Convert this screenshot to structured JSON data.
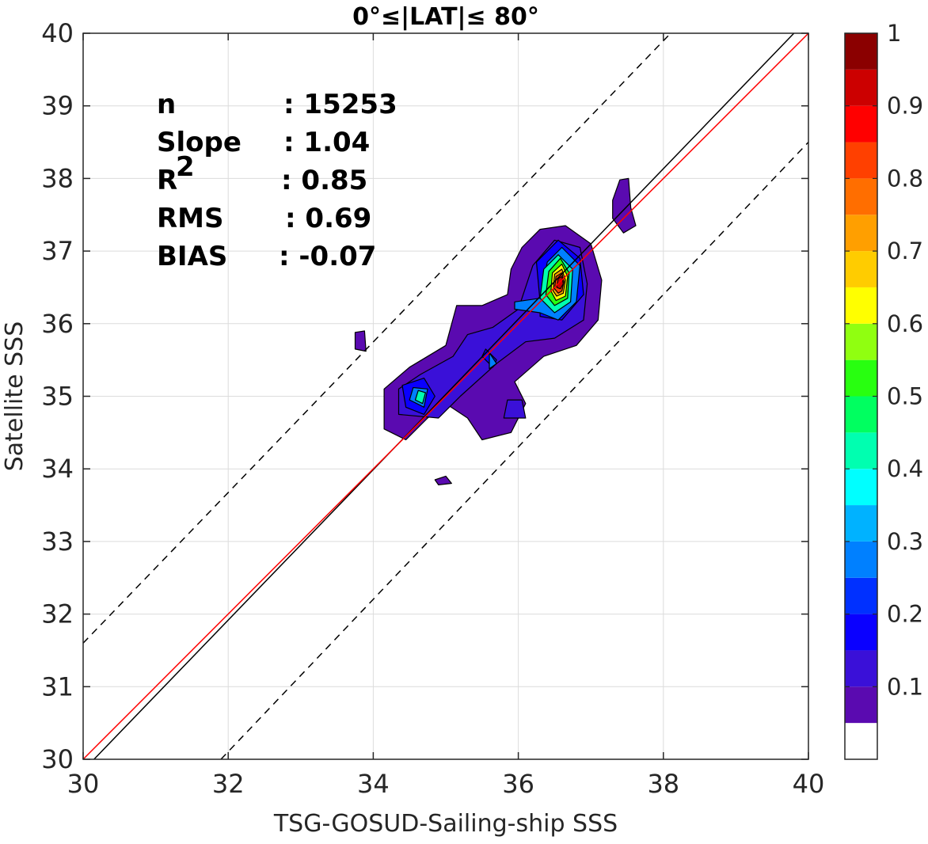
{
  "chart_data": {
    "type": "heatmap",
    "title": "0°≤|LAT|≤ 80°",
    "xlabel": "TSG-GOSUD-Sailing-ship SSS",
    "ylabel": "Satellite SSS",
    "xlim": [
      30,
      40
    ],
    "ylim": [
      30,
      40
    ],
    "xticks": [
      "30",
      "32",
      "34",
      "36",
      "38",
      "40"
    ],
    "yticks": [
      "30",
      "31",
      "32",
      "33",
      "34",
      "35",
      "36",
      "37",
      "38",
      "39",
      "40"
    ],
    "grid": true,
    "stats": [
      {
        "name": "n",
        "value": ": 15253"
      },
      {
        "name": "Slope",
        "value": ": 1.04"
      },
      {
        "name": "R",
        "sup": "2",
        "value": ": 0.85"
      },
      {
        "name": "RMS",
        "value": ": 0.69"
      },
      {
        "name": "BIAS",
        "value": ": -0.07"
      }
    ],
    "lines": [
      {
        "style": "solid",
        "color": "#000000",
        "points": [
          [
            30.15,
            30
          ],
          [
            39.8,
            40
          ]
        ]
      },
      {
        "style": "solid",
        "color": "#ff0000",
        "points": [
          [
            30,
            30
          ],
          [
            40,
            40
          ]
        ]
      },
      {
        "style": "dashed",
        "color": "#000000",
        "points": [
          [
            30,
            31.6
          ],
          [
            38.1,
            40
          ]
        ]
      },
      {
        "style": "dashed",
        "color": "#000000",
        "points": [
          [
            31.9,
            30
          ],
          [
            40,
            38.5
          ]
        ]
      }
    ],
    "density_peak": {
      "x": 36.55,
      "y": 36.55,
      "value": 1.0
    },
    "colorbar": {
      "range": [
        0,
        1
      ],
      "ticks": [
        "0.1",
        "0.2",
        "0.3",
        "0.4",
        "0.5",
        "0.6",
        "0.7",
        "0.8",
        "0.9",
        "1"
      ],
      "levels": [
        {
          "from": 0.0,
          "to": 0.05,
          "color": "#ffffff"
        },
        {
          "from": 0.05,
          "to": 0.1,
          "color": "#5a0ab0"
        },
        {
          "from": 0.1,
          "to": 0.15,
          "color": "#3a10d8"
        },
        {
          "from": 0.15,
          "to": 0.2,
          "color": "#0a00ff"
        },
        {
          "from": 0.2,
          "to": 0.25,
          "color": "#0030ff"
        },
        {
          "from": 0.25,
          "to": 0.3,
          "color": "#0080ff"
        },
        {
          "from": 0.3,
          "to": 0.35,
          "color": "#00b2ff"
        },
        {
          "from": 0.35,
          "to": 0.4,
          "color": "#00ffff"
        },
        {
          "from": 0.4,
          "to": 0.45,
          "color": "#00ffb0"
        },
        {
          "from": 0.45,
          "to": 0.5,
          "color": "#00ff60"
        },
        {
          "from": 0.5,
          "to": 0.55,
          "color": "#28ff10"
        },
        {
          "from": 0.55,
          "to": 0.6,
          "color": "#90ff10"
        },
        {
          "from": 0.6,
          "to": 0.65,
          "color": "#ffff00"
        },
        {
          "from": 0.65,
          "to": 0.7,
          "color": "#ffcc00"
        },
        {
          "from": 0.7,
          "to": 0.75,
          "color": "#ff9f00"
        },
        {
          "from": 0.75,
          "to": 0.8,
          "color": "#ff6e00"
        },
        {
          "from": 0.8,
          "to": 0.85,
          "color": "#ff4000"
        },
        {
          "from": 0.85,
          "to": 0.9,
          "color": "#ff0000"
        },
        {
          "from": 0.9,
          "to": 0.95,
          "color": "#cc0000"
        },
        {
          "from": 0.95,
          "to": 1.0,
          "color": "#8b0000"
        }
      ]
    },
    "contours": [
      {
        "level": 0.1,
        "points": [
          [
            34.45,
            34.4
          ],
          [
            34.15,
            34.55
          ],
          [
            34.15,
            35.1
          ],
          [
            34.5,
            35.4
          ],
          [
            35.0,
            35.7
          ],
          [
            35.15,
            36.25
          ],
          [
            35.5,
            36.25
          ],
          [
            35.85,
            36.4
          ],
          [
            35.9,
            36.75
          ],
          [
            36.05,
            37.05
          ],
          [
            36.3,
            37.3
          ],
          [
            36.65,
            37.35
          ],
          [
            37.0,
            37.1
          ],
          [
            37.15,
            36.6
          ],
          [
            37.1,
            36.05
          ],
          [
            36.8,
            35.7
          ],
          [
            36.35,
            35.55
          ],
          [
            35.95,
            35.2
          ],
          [
            36.1,
            34.9
          ],
          [
            35.9,
            34.5
          ],
          [
            35.5,
            34.4
          ],
          [
            35.3,
            34.7
          ],
          [
            35.0,
            34.9
          ],
          [
            34.75,
            34.7
          ]
        ]
      },
      {
        "level": 0.1,
        "points": [
          [
            37.3,
            37.7
          ],
          [
            37.4,
            37.98
          ],
          [
            37.52,
            38.0
          ],
          [
            37.55,
            37.6
          ],
          [
            37.62,
            37.35
          ],
          [
            37.45,
            37.25
          ],
          [
            37.3,
            37.45
          ]
        ]
      },
      {
        "level": 0.1,
        "points": [
          [
            33.75,
            35.65
          ],
          [
            33.75,
            35.88
          ],
          [
            33.88,
            35.9
          ],
          [
            33.9,
            35.62
          ]
        ]
      },
      {
        "level": 0.1,
        "points": [
          [
            34.85,
            33.85
          ],
          [
            35.0,
            33.9
          ],
          [
            35.08,
            33.8
          ],
          [
            34.9,
            33.78
          ]
        ]
      },
      {
        "level": 0.15,
        "points": [
          [
            34.35,
            34.75
          ],
          [
            34.35,
            35.1
          ],
          [
            34.65,
            35.3
          ],
          [
            35.1,
            35.55
          ],
          [
            35.3,
            35.85
          ],
          [
            35.65,
            35.95
          ],
          [
            36.0,
            36.2
          ],
          [
            36.2,
            36.8
          ],
          [
            36.5,
            37.15
          ],
          [
            36.85,
            37.05
          ],
          [
            36.95,
            36.55
          ],
          [
            36.9,
            36.05
          ],
          [
            36.5,
            35.8
          ],
          [
            36.1,
            35.75
          ],
          [
            35.7,
            35.45
          ],
          [
            35.2,
            35.0
          ],
          [
            34.9,
            34.7
          ]
        ]
      },
      {
        "level": 0.15,
        "points": [
          [
            35.8,
            34.7
          ],
          [
            35.85,
            34.95
          ],
          [
            36.05,
            34.95
          ],
          [
            36.1,
            34.7
          ]
        ]
      },
      {
        "level": 0.2,
        "points": [
          [
            34.45,
            34.85
          ],
          [
            34.4,
            35.15
          ],
          [
            34.7,
            35.25
          ],
          [
            34.85,
            35.0
          ],
          [
            34.7,
            34.75
          ]
        ]
      },
      {
        "level": 0.2,
        "points": [
          [
            35.55,
            35.65
          ],
          [
            35.7,
            35.5
          ],
          [
            35.65,
            35.4
          ],
          [
            35.5,
            35.55
          ]
        ]
      },
      {
        "level": 0.2,
        "points": [
          [
            36.3,
            36.3
          ],
          [
            36.25,
            36.85
          ],
          [
            36.55,
            37.15
          ],
          [
            36.85,
            36.9
          ],
          [
            36.9,
            36.4
          ],
          [
            36.6,
            36.05
          ],
          [
            36.3,
            36.1
          ]
        ]
      },
      {
        "level": 0.3,
        "points": [
          [
            34.5,
            34.95
          ],
          [
            34.55,
            35.12
          ],
          [
            34.75,
            35.1
          ],
          [
            34.7,
            34.85
          ]
        ]
      },
      {
        "level": 0.3,
        "points": [
          [
            35.6,
            35.6
          ],
          [
            35.7,
            35.45
          ],
          [
            35.6,
            35.38
          ]
        ]
      },
      {
        "level": 0.3,
        "points": [
          [
            35.95,
            36.2
          ],
          [
            35.95,
            36.3
          ],
          [
            36.3,
            36.35
          ],
          [
            36.4,
            36.85
          ],
          [
            36.6,
            37.05
          ],
          [
            36.85,
            36.8
          ],
          [
            36.8,
            36.3
          ],
          [
            36.55,
            36.05
          ],
          [
            36.3,
            36.15
          ]
        ]
      },
      {
        "level": 0.45,
        "points": [
          [
            34.58,
            34.95
          ],
          [
            34.62,
            35.08
          ],
          [
            34.72,
            35.05
          ],
          [
            34.68,
            34.9
          ]
        ]
      },
      {
        "level": 0.45,
        "points": [
          [
            36.3,
            36.35
          ],
          [
            36.35,
            36.75
          ],
          [
            36.55,
            36.95
          ],
          [
            36.75,
            36.75
          ],
          [
            36.72,
            36.3
          ],
          [
            36.5,
            36.15
          ]
        ]
      },
      {
        "level": 0.55,
        "points": [
          [
            36.38,
            36.4
          ],
          [
            36.42,
            36.72
          ],
          [
            36.58,
            36.9
          ],
          [
            36.7,
            36.7
          ],
          [
            36.68,
            36.35
          ],
          [
            36.5,
            36.25
          ]
        ]
      },
      {
        "level": 0.65,
        "points": [
          [
            36.45,
            36.45
          ],
          [
            36.47,
            36.7
          ],
          [
            36.6,
            36.82
          ],
          [
            36.68,
            36.65
          ],
          [
            36.65,
            36.38
          ],
          [
            36.52,
            36.32
          ]
        ]
      },
      {
        "level": 0.75,
        "points": [
          [
            36.48,
            36.45
          ],
          [
            36.5,
            36.68
          ],
          [
            36.6,
            36.75
          ],
          [
            36.65,
            36.6
          ],
          [
            36.62,
            36.42
          ],
          [
            36.53,
            36.38
          ]
        ]
      },
      {
        "level": 0.85,
        "points": [
          [
            36.5,
            36.48
          ],
          [
            36.52,
            36.65
          ],
          [
            36.6,
            36.7
          ],
          [
            36.63,
            36.58
          ],
          [
            36.6,
            36.45
          ],
          [
            36.55,
            36.42
          ]
        ]
      },
      {
        "level": 0.95,
        "points": [
          [
            36.53,
            36.5
          ],
          [
            36.55,
            36.62
          ],
          [
            36.6,
            36.65
          ],
          [
            36.62,
            36.55
          ],
          [
            36.58,
            36.48
          ]
        ]
      }
    ]
  }
}
